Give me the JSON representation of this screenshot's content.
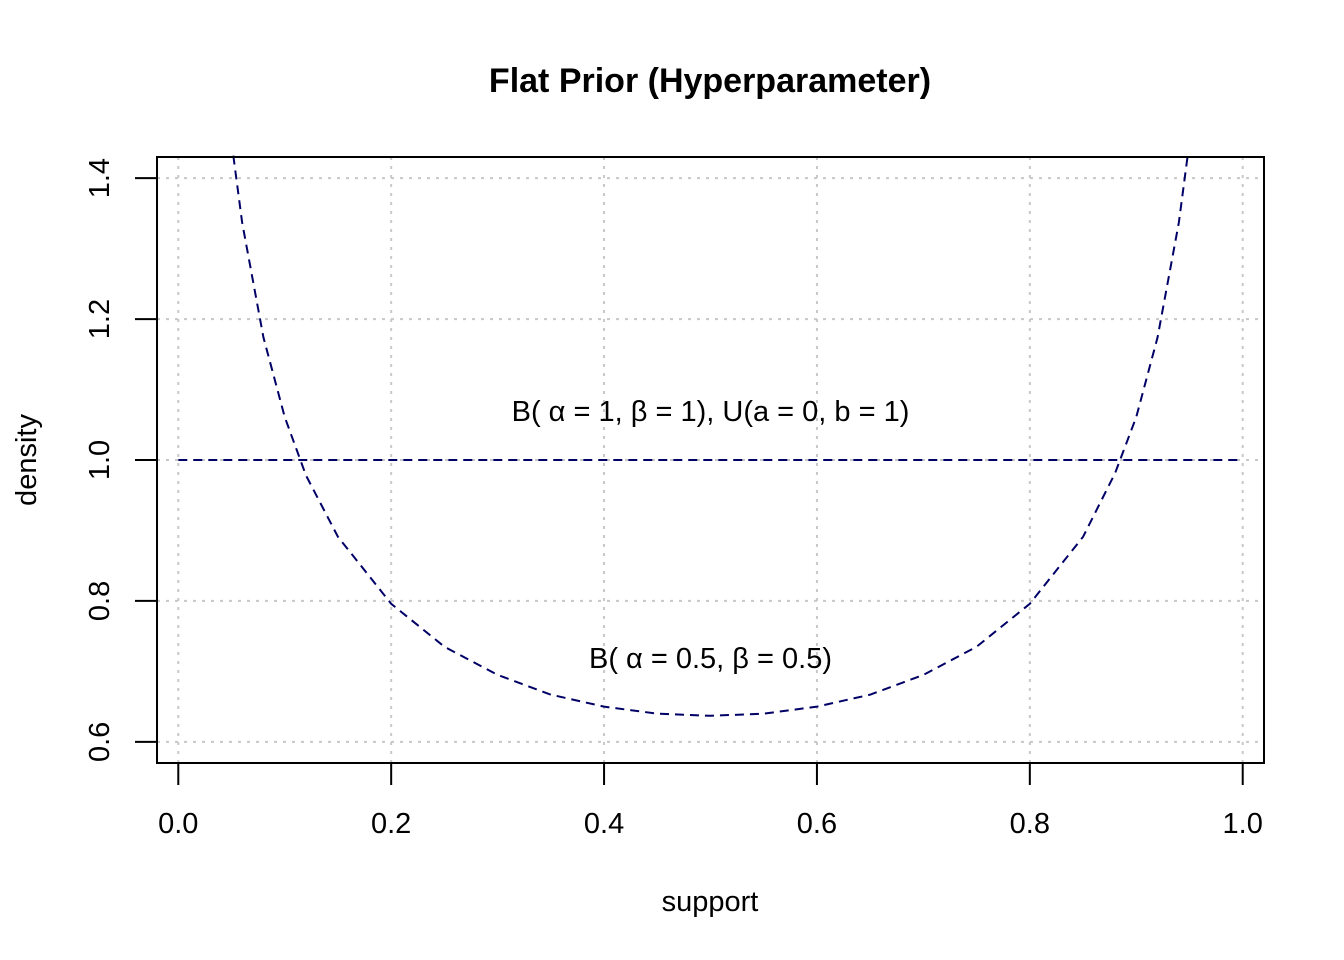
{
  "chart_data": {
    "type": "line",
    "title": "Flat Prior (Hyperparameter)",
    "xlabel": "support",
    "ylabel": "density",
    "xlim": [
      -0.02,
      1.02
    ],
    "ylim": [
      0.57,
      1.43
    ],
    "xticks": [
      0.0,
      0.2,
      0.4,
      0.6,
      0.8,
      1.0
    ],
    "xtick_labels": [
      "0.0",
      "0.2",
      "0.4",
      "0.6",
      "0.8",
      "1.0"
    ],
    "yticks": [
      0.6,
      0.8,
      1.0,
      1.2,
      1.4
    ],
    "ytick_labels": [
      "0.6",
      "0.8",
      "1.0",
      "1.2",
      "1.4"
    ],
    "grid": true,
    "line_color": "#000066",
    "grid_color": "#c8c8c8",
    "series": [
      {
        "label": "B( α = 1,  β = 1),  U(a = 0, b = 1)",
        "x": [
          0.0,
          0.25,
          0.5,
          0.75,
          1.0
        ],
        "y": [
          1.0,
          1.0,
          1.0,
          1.0,
          1.0
        ]
      },
      {
        "label": "B( α = 0.5,  β = 0.5)",
        "x": [
          0.0517,
          0.06,
          0.08,
          0.1,
          0.12,
          0.15,
          0.2,
          0.25,
          0.3,
          0.35,
          0.4,
          0.45,
          0.5,
          0.55,
          0.6,
          0.65,
          0.7,
          0.75,
          0.8,
          0.85,
          0.88,
          0.9,
          0.92,
          0.94,
          0.9483
        ],
        "y": [
          1.432,
          1.337,
          1.174,
          1.061,
          0.978,
          0.891,
          0.796,
          0.735,
          0.695,
          0.667,
          0.65,
          0.64,
          0.637,
          0.64,
          0.65,
          0.667,
          0.695,
          0.735,
          0.796,
          0.891,
          0.981,
          1.061,
          1.174,
          1.337,
          1.432
        ]
      }
    ],
    "annotations": [
      {
        "text": "B( α = 1,  β = 1),  U(a = 0, b = 1)",
        "x": 0.5,
        "y": 1.055
      },
      {
        "text": "B( α = 0.5,  β = 0.5)",
        "x": 0.5,
        "y": 0.705
      }
    ]
  }
}
